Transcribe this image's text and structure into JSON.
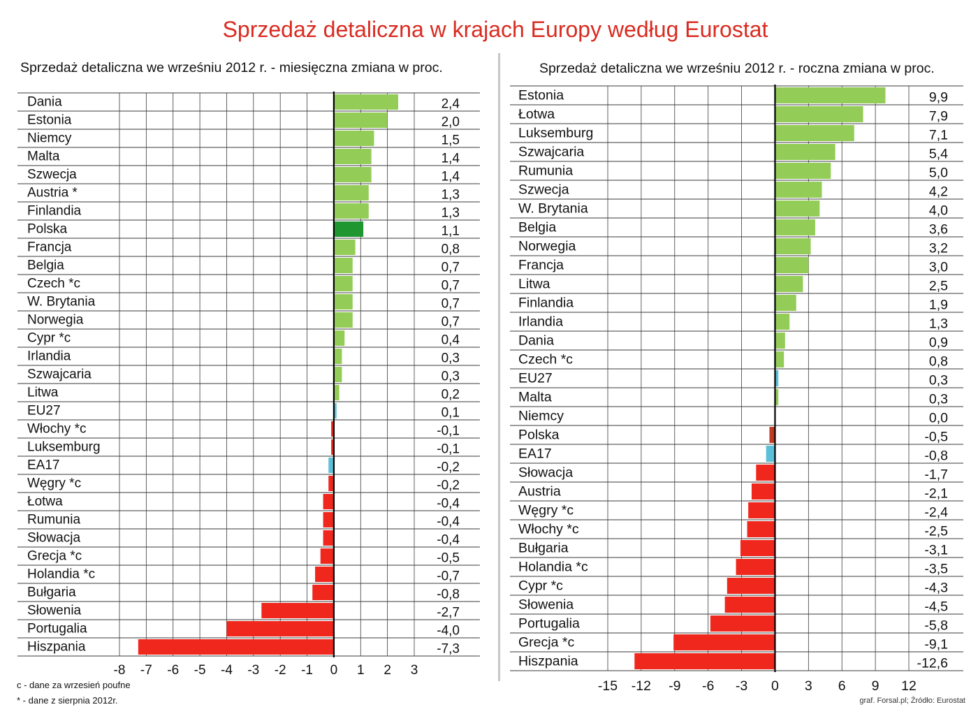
{
  "title": "Sprzedaż detaliczna w krajach Europy według Eurostat",
  "footnotes": [
    "c - dane za wrzesień poufne",
    "* - dane z sierpnia 2012r."
  ],
  "credit": "graf. Forsal.pl; Źródło: Eurostat",
  "colors": {
    "positive": "#93cc57",
    "highlight": "#1f9630",
    "negative": "#f0271d",
    "negative_highlight": "#c23a22",
    "aggregate": "#5bbfd7"
  },
  "chart_data": [
    {
      "type": "bar",
      "orientation": "horizontal",
      "title": "Sprzedaż detaliczna we wrześniu 2012 r. - miesięczna zmiana w proc.",
      "categories": [
        "Dania",
        "Estonia",
        "Niemcy",
        "Malta",
        "Szwecja",
        "Austria *",
        "Finlandia",
        "Polska",
        "Francja",
        "Belgia",
        "Czech *c",
        "W. Brytania",
        "Norwegia",
        "Cypr *c",
        "Irlandia",
        "Szwajcaria",
        "Litwa",
        "EU27",
        "Włochy *c",
        "Luksemburg",
        "EA17",
        "Węgry *c",
        "Łotwa",
        "Rumunia",
        "Słowacja",
        "Grecja *c",
        "Holandia *c",
        "Bułgaria",
        "Słowenia",
        "Portugalia",
        "Hiszpania"
      ],
      "values": [
        2.4,
        2.0,
        1.5,
        1.4,
        1.4,
        1.3,
        1.3,
        1.1,
        0.8,
        0.7,
        0.7,
        0.7,
        0.7,
        0.4,
        0.3,
        0.3,
        0.2,
        0.1,
        -0.1,
        -0.1,
        -0.2,
        -0.2,
        -0.4,
        -0.4,
        -0.4,
        -0.5,
        -0.7,
        -0.8,
        -2.7,
        -4.0,
        -7.3
      ],
      "value_labels": [
        "2,4",
        "2,0",
        "1,5",
        "1,4",
        "1,4",
        "1,3",
        "1,3",
        "1,1",
        "0,8",
        "0,7",
        "0,7",
        "0,7",
        "0,7",
        "0,4",
        "0,3",
        "0,3",
        "0,2",
        "0,1",
        "-0,1",
        "-0,1",
        "-0,2",
        "-0,2",
        "-0,4",
        "-0,4",
        "-0,4",
        "-0,5",
        "-0,7",
        "-0,8",
        "-2,7",
        "-4,0",
        "-7,3"
      ],
      "xlim": [
        -8,
        3
      ],
      "xticks": [
        -8,
        -7,
        -6,
        -5,
        -4,
        -3,
        -2,
        -1,
        0,
        1,
        2,
        3
      ],
      "xtick_labels": [
        "-8",
        "-7",
        "-6",
        "-5",
        "-4",
        "-3",
        "-2",
        "-1",
        "0",
        "1",
        "2",
        "3"
      ],
      "highlight": [
        "Polska"
      ],
      "aggregates": [
        "EU27",
        "EA17"
      ],
      "grid": true
    },
    {
      "type": "bar",
      "orientation": "horizontal",
      "title": "Sprzedaż detaliczna we wrześniu 2012 r. - roczna zmiana w proc.",
      "categories": [
        "Estonia",
        "Łotwa",
        "Luksemburg",
        "Szwajcaria",
        "Rumunia",
        "Szwecja",
        "W. Brytania",
        "Belgia",
        "Norwegia",
        "Francja",
        "Litwa",
        "Finlandia",
        "Irlandia",
        "Dania",
        "Czech *c",
        "EU27",
        "Malta",
        "Niemcy",
        "Polska",
        "EA17",
        "Słowacja",
        "Austria",
        "Węgry *c",
        "Włochy *c",
        "Bułgaria",
        "Holandia *c",
        "Cypr *c",
        "Słowenia",
        "Portugalia",
        "Grecja *c",
        "Hiszpania"
      ],
      "values": [
        9.9,
        7.9,
        7.1,
        5.4,
        5.0,
        4.2,
        4.0,
        3.6,
        3.2,
        3.0,
        2.5,
        1.9,
        1.3,
        0.9,
        0.8,
        0.3,
        0.3,
        0.0,
        -0.5,
        -0.8,
        -1.7,
        -2.1,
        -2.4,
        -2.5,
        -3.1,
        -3.5,
        -4.3,
        -4.5,
        -5.8,
        -9.1,
        -12.6
      ],
      "value_labels": [
        "9,9",
        "7,9",
        "7,1",
        "5,4",
        "5,0",
        "4,2",
        "4,0",
        "3,6",
        "3,2",
        "3,0",
        "2,5",
        "1,9",
        "1,3",
        "0,9",
        "0,8",
        "0,3",
        "0,3",
        "0,0",
        "-0,5",
        "-0,8",
        "-1,7",
        "-2,1",
        "-2,4",
        "-2,5",
        "-3,1",
        "-3,5",
        "-4,3",
        "-4,5",
        "-5,8",
        "-9,1",
        "-12,6"
      ],
      "xlim": [
        -15,
        12
      ],
      "xticks": [
        -15,
        -12,
        -9,
        -6,
        -3,
        0,
        3,
        6,
        9,
        12
      ],
      "xtick_labels": [
        "-15",
        "-12",
        "-9",
        "-6",
        "-3",
        "0",
        "3",
        "6",
        "9",
        "12"
      ],
      "highlight": [
        "Polska"
      ],
      "aggregates": [
        "EU27",
        "EA17"
      ],
      "grid": true
    }
  ]
}
